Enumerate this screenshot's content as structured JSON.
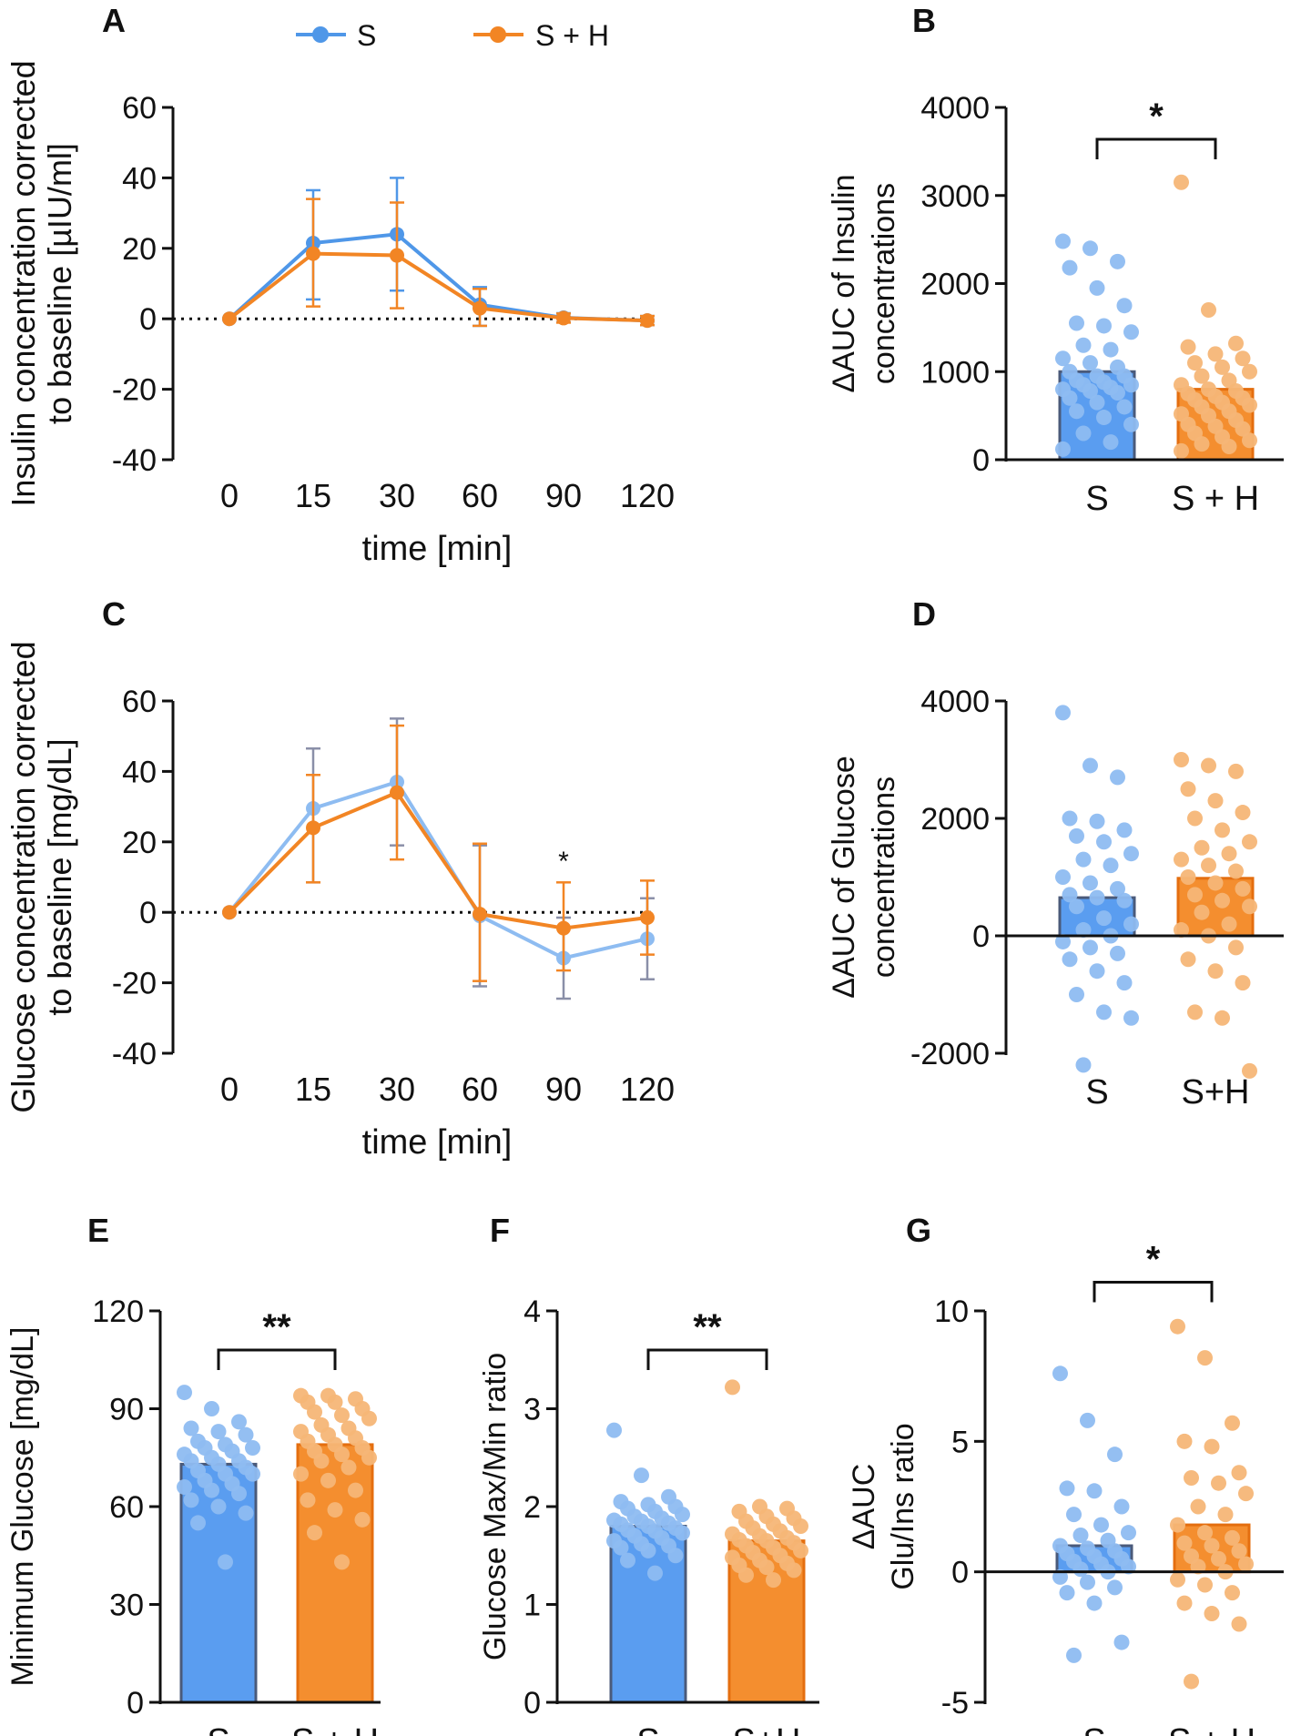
{
  "legend": {
    "items": [
      {
        "label": "S",
        "color": "#4f97e8"
      },
      {
        "label": "S + H",
        "color": "#f28524"
      }
    ]
  },
  "colors": {
    "blue": "#4f97e8",
    "blue_light": "#8ebcf1",
    "blue_bar": "#5a9df0",
    "orange": "#f28524",
    "orange_light": "#f6b677",
    "orange_bar": "#f48e2f",
    "err_gray": "#8a8fa8"
  },
  "chart_data": [
    {
      "id": "A",
      "panel_label": "A",
      "type": "line",
      "xlabel": "time [min]",
      "ylabel_lines": [
        "Insulin concentration corrected",
        "to baseline [µIU/ml]"
      ],
      "categories": [
        "0",
        "15",
        "30",
        "60",
        "90",
        "120"
      ],
      "ylim": [
        -40,
        60
      ],
      "yticks": [
        60,
        40,
        20,
        0,
        -20,
        -40
      ],
      "ytick_labels": [
        "60",
        "40",
        "20",
        "0",
        "-20",
        "-40"
      ],
      "series": [
        {
          "name": "S",
          "values": [
            0,
            21.5,
            24,
            4,
            0.3,
            -0.5
          ],
          "err_up": [
            0,
            15,
            16,
            5,
            1.3,
            1.3
          ],
          "err_down": [
            0,
            16,
            16,
            6,
            1.3,
            1.3
          ]
        },
        {
          "name": "S + H",
          "values": [
            0,
            18.5,
            18,
            3,
            0.2,
            -0.5
          ],
          "err_up": [
            0,
            15.5,
            15,
            5.5,
            1.3,
            1.3
          ],
          "err_down": [
            0,
            15,
            15,
            5,
            1.3,
            1.3
          ]
        }
      ]
    },
    {
      "id": "B",
      "panel_label": "B",
      "type": "bar",
      "ylabel_lines": [
        "ΔAUC of Insulin",
        "concentrations"
      ],
      "categories": [
        "S",
        "S + H"
      ],
      "values": [
        1000,
        800
      ],
      "ylim": [
        0,
        4000
      ],
      "yticks": [
        0,
        1000,
        2000,
        3000,
        4000
      ],
      "ytick_labels": [
        "0",
        "1000",
        "2000",
        "3000",
        "4000"
      ],
      "significance": "*",
      "points": [
        [
          2480,
          2400,
          2250,
          2180,
          1950,
          1750,
          1550,
          1520,
          1450,
          1300,
          1250,
          1150,
          1100,
          1050,
          1000,
          950,
          950,
          900,
          880,
          850,
          850,
          820,
          800,
          780,
          760,
          700,
          650,
          600,
          550,
          480,
          400,
          300,
          200,
          120
        ],
        [
          3150,
          1700,
          1320,
          1280,
          1200,
          1150,
          1100,
          1050,
          1000,
          950,
          900,
          850,
          800,
          780,
          750,
          720,
          700,
          680,
          650,
          620,
          600,
          550,
          520,
          500,
          450,
          400,
          380,
          350,
          300,
          260,
          220,
          180,
          150,
          100
        ]
      ]
    },
    {
      "id": "C",
      "panel_label": "C",
      "type": "line",
      "xlabel": "time [min]",
      "ylabel_lines": [
        "Glucose concentration corrected",
        "to baseline [mg/dL]"
      ],
      "categories": [
        "0",
        "15",
        "30",
        "60",
        "90",
        "120"
      ],
      "ylim": [
        -40,
        60
      ],
      "yticks": [
        60,
        40,
        20,
        0,
        -20,
        -40
      ],
      "ytick_labels": [
        "60",
        "40",
        "20",
        "0",
        "-20",
        "-40"
      ],
      "annotation": {
        "text": "*",
        "category": "90",
        "value": 12
      },
      "series": [
        {
          "name": "S",
          "values": [
            0,
            29.5,
            37,
            -1,
            -13,
            -7.5
          ],
          "err_up": [
            0,
            17,
            18,
            20,
            11.5,
            11.5
          ],
          "err_down": [
            0,
            21,
            18,
            20,
            11.5,
            11.5
          ]
        },
        {
          "name": "S + H",
          "values": [
            0,
            24,
            34,
            -0.5,
            -4.5,
            -1.5
          ],
          "err_up": [
            0,
            15,
            19,
            20,
            13,
            10.5
          ],
          "err_down": [
            0,
            15.5,
            19,
            19,
            12,
            10.5
          ]
        }
      ]
    },
    {
      "id": "D",
      "panel_label": "D",
      "type": "bar",
      "ylabel_lines": [
        "ΔAUC of Glucose",
        "concentrations"
      ],
      "categories": [
        "S",
        "S+H"
      ],
      "values": [
        650,
        980
      ],
      "ylim": [
        -3000,
        4000
      ],
      "yticks": [
        4000,
        2000,
        0,
        -2000
      ],
      "ytick_labels": [
        "4000",
        "2000",
        "0",
        "-2000"
      ],
      "points": [
        [
          3800,
          2900,
          2700,
          2000,
          1950,
          1800,
          1700,
          1600,
          1400,
          1300,
          1200,
          1000,
          900,
          800,
          700,
          650,
          600,
          500,
          300,
          200,
          100,
          0,
          -100,
          -200,
          -300,
          -400,
          -600,
          -800,
          -1000,
          -1300,
          -1400,
          -2200
        ],
        [
          3000,
          2900,
          2800,
          2500,
          2300,
          2100,
          2000,
          1800,
          1600,
          1500,
          1400,
          1300,
          1200,
          1100,
          1000,
          900,
          800,
          700,
          600,
          500,
          400,
          200,
          100,
          0,
          -200,
          -400,
          -600,
          -800,
          -1300,
          -1400,
          -2300
        ]
      ]
    },
    {
      "id": "E",
      "panel_label": "E",
      "type": "bar",
      "ylabel_lines": [
        "Minimum Glucose [mg/dL]"
      ],
      "categories": [
        "S",
        "S + H"
      ],
      "values": [
        73,
        79
      ],
      "ylim": [
        0,
        120
      ],
      "yticks": [
        0,
        30,
        60,
        90,
        120
      ],
      "ytick_labels": [
        "0",
        "30",
        "60",
        "90",
        "120"
      ],
      "significance": "**",
      "points": [
        [
          95,
          90,
          86,
          84,
          83,
          82,
          80,
          79,
          78,
          78,
          77,
          76,
          75,
          74,
          74,
          73,
          72,
          71,
          70,
          70,
          68,
          67,
          66,
          65,
          64,
          62,
          60,
          58,
          55,
          43
        ],
        [
          94,
          94,
          93,
          92,
          92,
          90,
          89,
          88,
          87,
          85,
          84,
          83,
          82,
          81,
          80,
          79,
          78,
          77,
          76,
          75,
          74,
          72,
          70,
          68,
          65,
          62,
          59,
          56,
          52,
          43
        ]
      ]
    },
    {
      "id": "F",
      "panel_label": "F",
      "type": "bar",
      "ylabel_lines": [
        "Glucose Max/Min ratio"
      ],
      "categories": [
        "S",
        "S+H"
      ],
      "values": [
        1.8,
        1.65
      ],
      "ylim": [
        0,
        4
      ],
      "yticks": [
        0,
        1,
        2,
        3,
        4
      ],
      "ytick_labels": [
        "0",
        "1",
        "2",
        "3",
        "4"
      ],
      "significance": "**",
      "points": [
        [
          2.78,
          2.32,
          2.1,
          2.05,
          2.02,
          2.0,
          1.98,
          1.95,
          1.92,
          1.9,
          1.88,
          1.86,
          1.85,
          1.83,
          1.82,
          1.8,
          1.78,
          1.76,
          1.75,
          1.73,
          1.7,
          1.68,
          1.65,
          1.62,
          1.6,
          1.58,
          1.55,
          1.5,
          1.45,
          1.32
        ],
        [
          3.22,
          2.0,
          1.98,
          1.95,
          1.9,
          1.88,
          1.85,
          1.82,
          1.8,
          1.78,
          1.75,
          1.72,
          1.7,
          1.68,
          1.66,
          1.65,
          1.63,
          1.6,
          1.58,
          1.55,
          1.53,
          1.5,
          1.48,
          1.45,
          1.42,
          1.4,
          1.38,
          1.35,
          1.3,
          1.25
        ]
      ]
    },
    {
      "id": "G",
      "panel_label": "G",
      "type": "bar",
      "ylabel_lines": [
        "ΔAUC",
        "Glu/Ins ratio"
      ],
      "categories": [
        "S",
        "S + H"
      ],
      "values": [
        1.0,
        1.8
      ],
      "ylim": [
        -5,
        12
      ],
      "yticks": [
        10,
        5,
        0,
        -5
      ],
      "ytick_labels": [
        "10",
        "5",
        "0",
        "-5"
      ],
      "significance": "*",
      "points": [
        [
          7.6,
          5.8,
          4.5,
          3.2,
          3.1,
          2.5,
          2.2,
          1.8,
          1.5,
          1.4,
          1.2,
          1.0,
          0.9,
          0.8,
          0.7,
          0.6,
          0.5,
          0.4,
          0.3,
          0.2,
          0.1,
          0.0,
          -0.2,
          -0.4,
          -0.6,
          -0.8,
          -1.2,
          -2.7,
          -3.2
        ],
        [
          9.4,
          8.2,
          5.7,
          5.0,
          4.8,
          3.8,
          3.6,
          3.4,
          3.0,
          2.5,
          2.2,
          1.8,
          1.5,
          1.3,
          1.1,
          1.0,
          0.8,
          0.6,
          0.5,
          0.3,
          0.2,
          0.0,
          -0.3,
          -0.5,
          -0.8,
          -1.2,
          -1.6,
          -2.0,
          -4.2
        ]
      ]
    }
  ]
}
